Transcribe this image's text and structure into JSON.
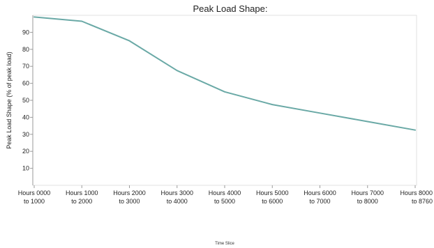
{
  "chart_data": {
    "type": "line",
    "title": "Peak Load Shape:",
    "xlabel": "Time Slice",
    "ylabel": "Peak Load Shape (% of peak load)",
    "categories": [
      [
        "Hours 0000",
        "to 1000"
      ],
      [
        "Hours 1000",
        "to 2000"
      ],
      [
        "Hours 2000",
        "to 3000"
      ],
      [
        "Hours 3000",
        "to 4000"
      ],
      [
        "Hours 4000",
        "to 5000"
      ],
      [
        "Hours 5000",
        "to 6000"
      ],
      [
        "Hours 6000",
        "to 7000"
      ],
      [
        "Hours 7000",
        "to 8000"
      ],
      [
        "Hours 8000",
        "to 8760"
      ]
    ],
    "series": [
      {
        "values": [
          99,
          96.5,
          85,
          67.5,
          55,
          47.5,
          42.5,
          37.5,
          32.5
        ],
        "color": "#6aa9a6"
      }
    ],
    "yticks": [
      10,
      20,
      30,
      40,
      50,
      60,
      70,
      80,
      90
    ],
    "ylim": [
      0,
      100
    ],
    "grid": false,
    "legend": "none"
  }
}
